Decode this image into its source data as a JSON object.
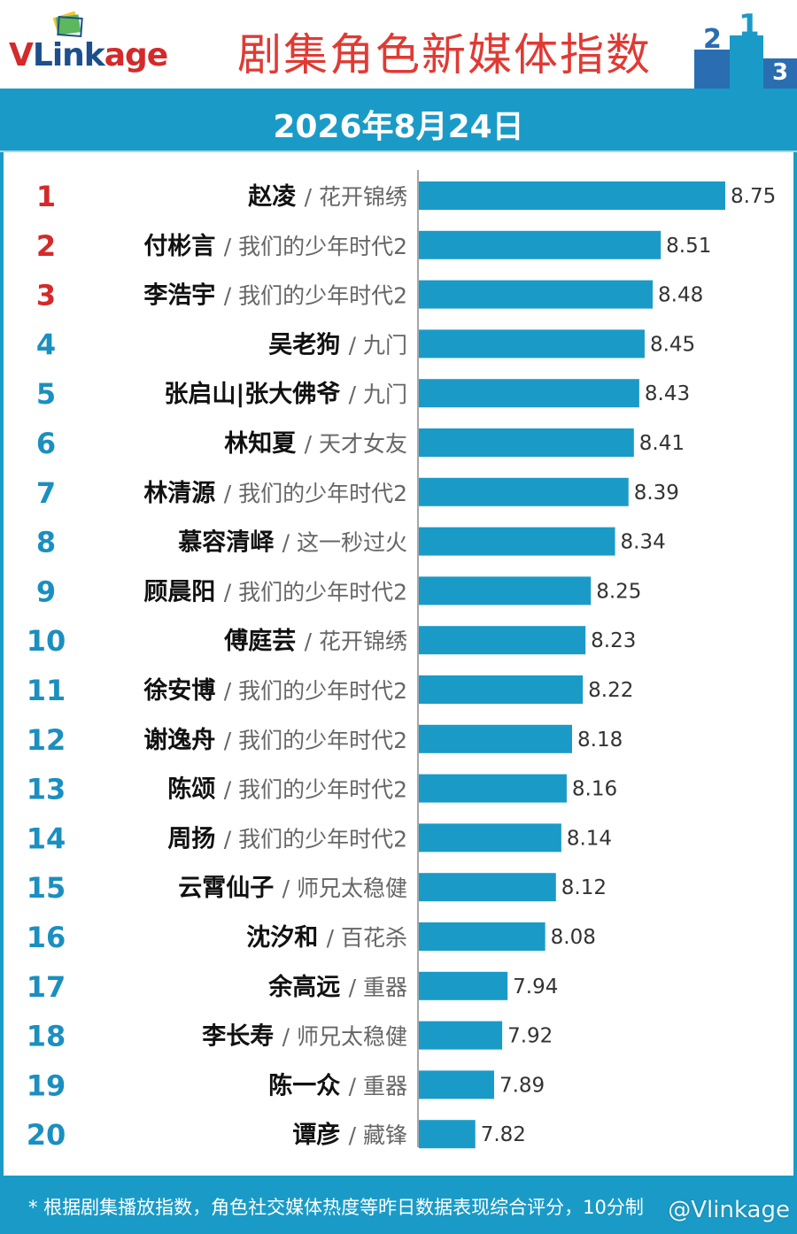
{
  "header": {
    "logo_text": "VLinkage",
    "title": "剧集角色新媒体指数"
  },
  "date": "2026年8月24日",
  "colors": {
    "bar": "#1a9bc7",
    "rank_top": "#d42a2a",
    "rank_other": "#1a8fc0",
    "title": "#e03a34"
  },
  "chart_data": {
    "type": "bar",
    "orientation": "horizontal",
    "title": "剧集角色新媒体指数",
    "xlim": [
      7.61,
      8.92
    ],
    "grid": false,
    "items": [
      {
        "rank": "1",
        "name": "赵凌",
        "show": "/ 花开锦绣",
        "value": 8.75,
        "label": "8.75"
      },
      {
        "rank": "2",
        "name": "付彬言",
        "show": "/ 我们的少年时代2",
        "value": 8.51,
        "label": "8.51"
      },
      {
        "rank": "3",
        "name": "李浩宇",
        "show": "/ 我们的少年时代2",
        "value": 8.48,
        "label": "8.48"
      },
      {
        "rank": "4",
        "name": "吴老狗",
        "show": "/ 九门",
        "value": 8.45,
        "label": "8.45"
      },
      {
        "rank": "5",
        "name": "张启山|张大佛爷",
        "show": "/ 九门",
        "value": 8.43,
        "label": "8.43"
      },
      {
        "rank": "6",
        "name": "林知夏",
        "show": "/ 天才女友",
        "value": 8.41,
        "label": "8.41"
      },
      {
        "rank": "7",
        "name": "林清源",
        "show": "/ 我们的少年时代2",
        "value": 8.39,
        "label": "8.39"
      },
      {
        "rank": "8",
        "name": "慕容清峄",
        "show": "/ 这一秒过火",
        "value": 8.34,
        "label": "8.34"
      },
      {
        "rank": "9",
        "name": "顾晨阳",
        "show": "/ 我们的少年时代2",
        "value": 8.25,
        "label": "8.25"
      },
      {
        "rank": "10",
        "name": "傅庭芸",
        "show": "/ 花开锦绣",
        "value": 8.23,
        "label": "8.23"
      },
      {
        "rank": "11",
        "name": "徐安博",
        "show": "/ 我们的少年时代2",
        "value": 8.22,
        "label": "8.22"
      },
      {
        "rank": "12",
        "name": "谢逸舟",
        "show": "/ 我们的少年时代2",
        "value": 8.18,
        "label": "8.18"
      },
      {
        "rank": "13",
        "name": "陈颂",
        "show": "/ 我们的少年时代2",
        "value": 8.16,
        "label": "8.16"
      },
      {
        "rank": "14",
        "name": "周扬",
        "show": "/ 我们的少年时代2",
        "value": 8.14,
        "label": "8.14"
      },
      {
        "rank": "15",
        "name": "云霄仙子",
        "show": "/ 师兄太稳健",
        "value": 8.12,
        "label": "8.12"
      },
      {
        "rank": "16",
        "name": "沈汐和",
        "show": "/ 百花杀",
        "value": 8.08,
        "label": "8.08"
      },
      {
        "rank": "17",
        "name": "余高远",
        "show": "/ 重器",
        "value": 7.94,
        "label": "7.94"
      },
      {
        "rank": "18",
        "name": "李长寿",
        "show": "/ 师兄太稳健",
        "value": 7.92,
        "label": "7.92"
      },
      {
        "rank": "19",
        "name": "陈一众",
        "show": "/ 重器",
        "value": 7.89,
        "label": "7.89"
      },
      {
        "rank": "20",
        "name": "谭彦",
        "show": "/ 藏锋",
        "value": 7.82,
        "label": "7.82"
      }
    ]
  },
  "footer": {
    "note": "* 根据剧集播放指数，角色社交媒体热度等昨日数据表现综合评分，10分制",
    "watermark": "@Vlinkage"
  }
}
